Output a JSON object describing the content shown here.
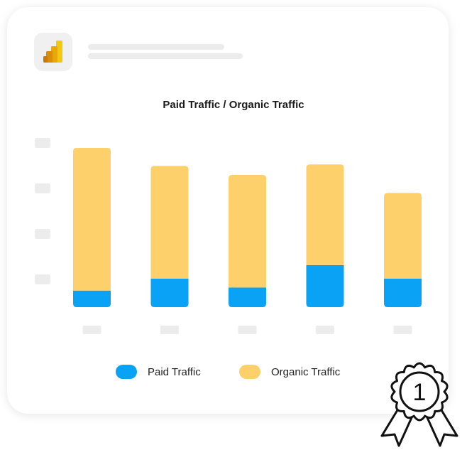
{
  "colors": {
    "paid": "#0aa2f5",
    "organic": "#fdd06b",
    "placeholder": "#ececec",
    "logo_gold": "#f2c811"
  },
  "logo": {
    "icon": "power-bi-icon"
  },
  "badge": {
    "icon": "first-place-ribbon-icon",
    "text": "1"
  },
  "chart_data": {
    "type": "bar",
    "stacked": true,
    "title": "Paid Traffic / Organic Traffic",
    "categories": [
      "",
      "",
      "",
      "",
      ""
    ],
    "series": [
      {
        "name": "Paid Traffic",
        "color": "#0aa2f5",
        "values": [
          11,
          19,
          13,
          28,
          19
        ]
      },
      {
        "name": "Organic Traffic",
        "color": "#fdd06b",
        "values": [
          95,
          75,
          75,
          67,
          57
        ]
      }
    ],
    "ylim": [
      0,
      106
    ],
    "grid": false,
    "legend": "bottom"
  }
}
